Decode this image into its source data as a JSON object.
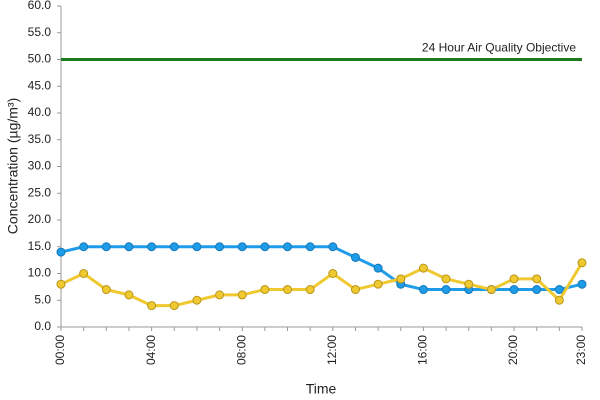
{
  "chart_data": {
    "type": "line",
    "y_label": "Concentration (µg/m³)",
    "x_label": "Time",
    "categories": [
      "00:00",
      null,
      null,
      null,
      "04:00",
      null,
      null,
      null,
      "08:00",
      null,
      null,
      null,
      "12:00",
      null,
      null,
      null,
      "16:00",
      null,
      null,
      null,
      "20:00",
      null,
      null,
      "23:00"
    ],
    "series": [
      {
        "color": "#1e9be9",
        "values": [
          14,
          15,
          15,
          15,
          15,
          15,
          15,
          15,
          15,
          15,
          15,
          15,
          15,
          13,
          11,
          8,
          7,
          7,
          7,
          7,
          7,
          7,
          7,
          8
        ]
      },
      {
        "color": "#f0c830",
        "values": [
          8,
          10,
          7,
          6,
          4,
          4,
          5,
          6,
          6,
          7,
          7,
          7,
          10,
          7,
          8,
          9,
          11,
          9,
          8,
          7,
          9,
          9,
          5,
          12
        ]
      }
    ],
    "reference_line": {
      "value": 50,
      "label": "24 Hour Air Quality Objective",
      "color": "#1f7a1f"
    },
    "ylim": [
      0,
      60
    ],
    "yticks": [
      {
        "value": 0,
        "label": "0.0"
      },
      {
        "value": 5,
        "label": "5.0"
      },
      {
        "value": 10,
        "label": "10.0"
      },
      {
        "value": 15,
        "label": "15.0"
      },
      {
        "value": 20,
        "label": "20.0"
      },
      {
        "value": 25,
        "label": "25.0"
      },
      {
        "value": 30,
        "label": "30.0"
      },
      {
        "value": 35,
        "label": "35.0"
      },
      {
        "value": 40,
        "label": "40.0"
      },
      {
        "value": 45,
        "label": "45.0"
      },
      {
        "value": 50,
        "label": "50.0"
      },
      {
        "value": 55,
        "label": "55.0"
      },
      {
        "value": 60,
        "label": "60.0"
      }
    ],
    "grid": false
  }
}
